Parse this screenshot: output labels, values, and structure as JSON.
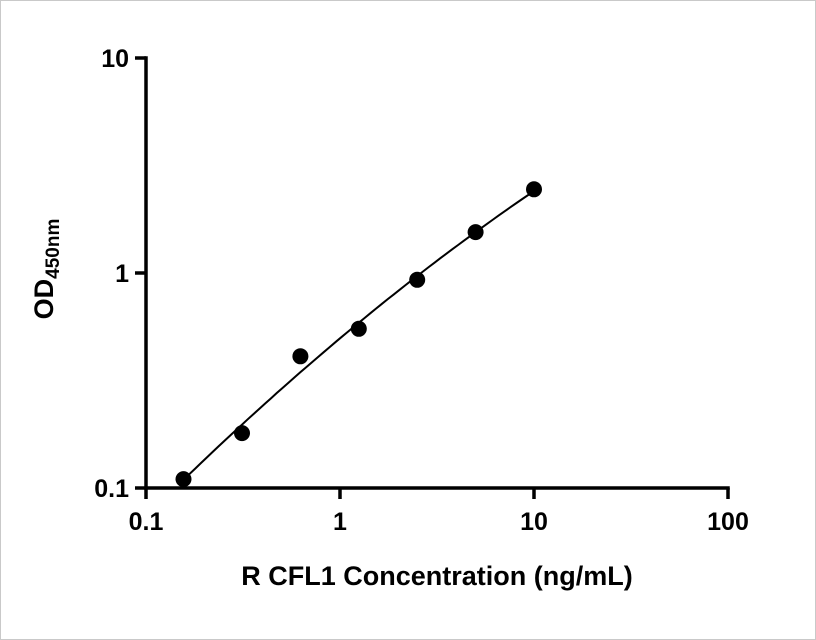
{
  "figure": {
    "background": "#ffffff",
    "foreground": "#000000"
  },
  "chart_data": {
    "type": "scatter",
    "title": "",
    "xlabel": "R CFL1 Concentration (ng/mL)",
    "ylabel_main": "OD",
    "ylabel_sub": "450nm",
    "x_scale": "log",
    "y_scale": "log",
    "xlim": [
      0.1,
      100
    ],
    "ylim": [
      0.1,
      10
    ],
    "x_ticks": [
      "0.1",
      "1",
      "10",
      "100"
    ],
    "x_tick_values": [
      0.1,
      1,
      10,
      100
    ],
    "y_ticks": [
      "0.1",
      "1",
      "10"
    ],
    "y_tick_values": [
      0.1,
      1,
      10
    ],
    "grid": false,
    "legend": "none",
    "fit_line": "log-log quadratic through standards",
    "marker": "filled-circle",
    "marker_color": "#000000",
    "line_color": "#000000",
    "points": {
      "x": [
        0.156,
        0.3125,
        0.625,
        1.25,
        2.5,
        5,
        10
      ],
      "y": [
        0.11,
        0.18,
        0.41,
        0.55,
        0.93,
        1.55,
        2.45
      ]
    }
  }
}
